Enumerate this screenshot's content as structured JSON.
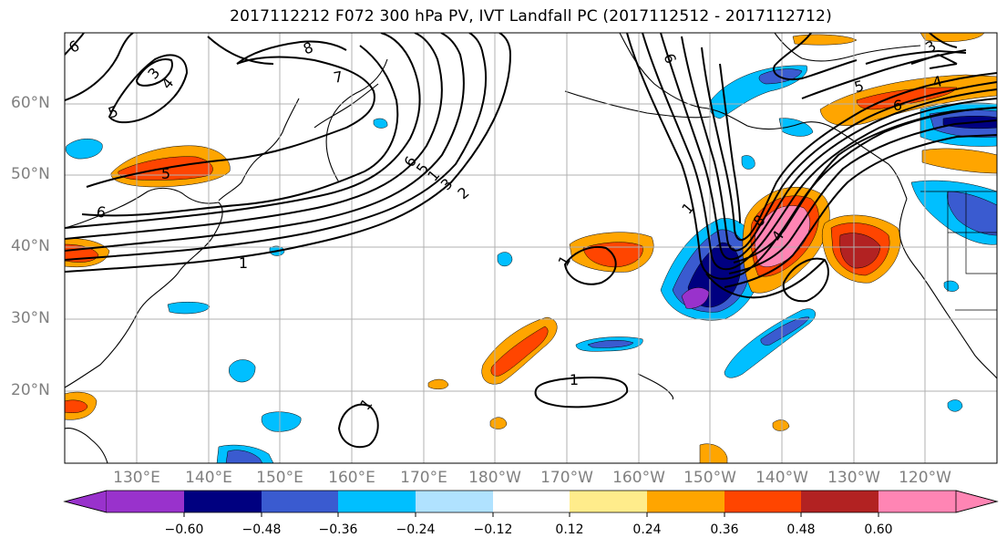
{
  "title": "2017112212 F072 300 hPa PV, IVT Landfall PC (2017112512 - 2017112712)",
  "lat_labels": [
    "60°N",
    "50°N",
    "40°N",
    "30°N",
    "20°N"
  ],
  "lon_labels": [
    "130°E",
    "140°E",
    "150°E",
    "160°E",
    "170°E",
    "180°W",
    "170°W",
    "160°W",
    "150°W",
    "140°W",
    "130°W",
    "120°W"
  ],
  "colorbar": {
    "colors": [
      "#9932cc",
      "#000080",
      "#3a5bd0",
      "#00bfff",
      "#b0e2ff",
      "#ffffff",
      "#ffec8b",
      "#ffa500",
      "#ff4500",
      "#b22222",
      "#ff85b4"
    ],
    "ticks": [
      "−0.60",
      "−0.48",
      "−0.36",
      "−0.24",
      "−0.12",
      "0.12",
      "0.24",
      "0.36",
      "0.48",
      "0.60"
    ]
  },
  "contour_labels": [
    "6",
    "3",
    "4",
    "5",
    "8",
    "7",
    "5",
    "6",
    "1",
    "6",
    "5",
    "1",
    "3",
    "2",
    "1",
    "1",
    "1",
    "1",
    "8",
    "4",
    "5",
    "6",
    "4",
    "3",
    "6"
  ],
  "colors": {
    "ocean": "#ffffff",
    "grid": "#b0b0b0",
    "contour": "#000000",
    "axis_label": "#808080"
  }
}
